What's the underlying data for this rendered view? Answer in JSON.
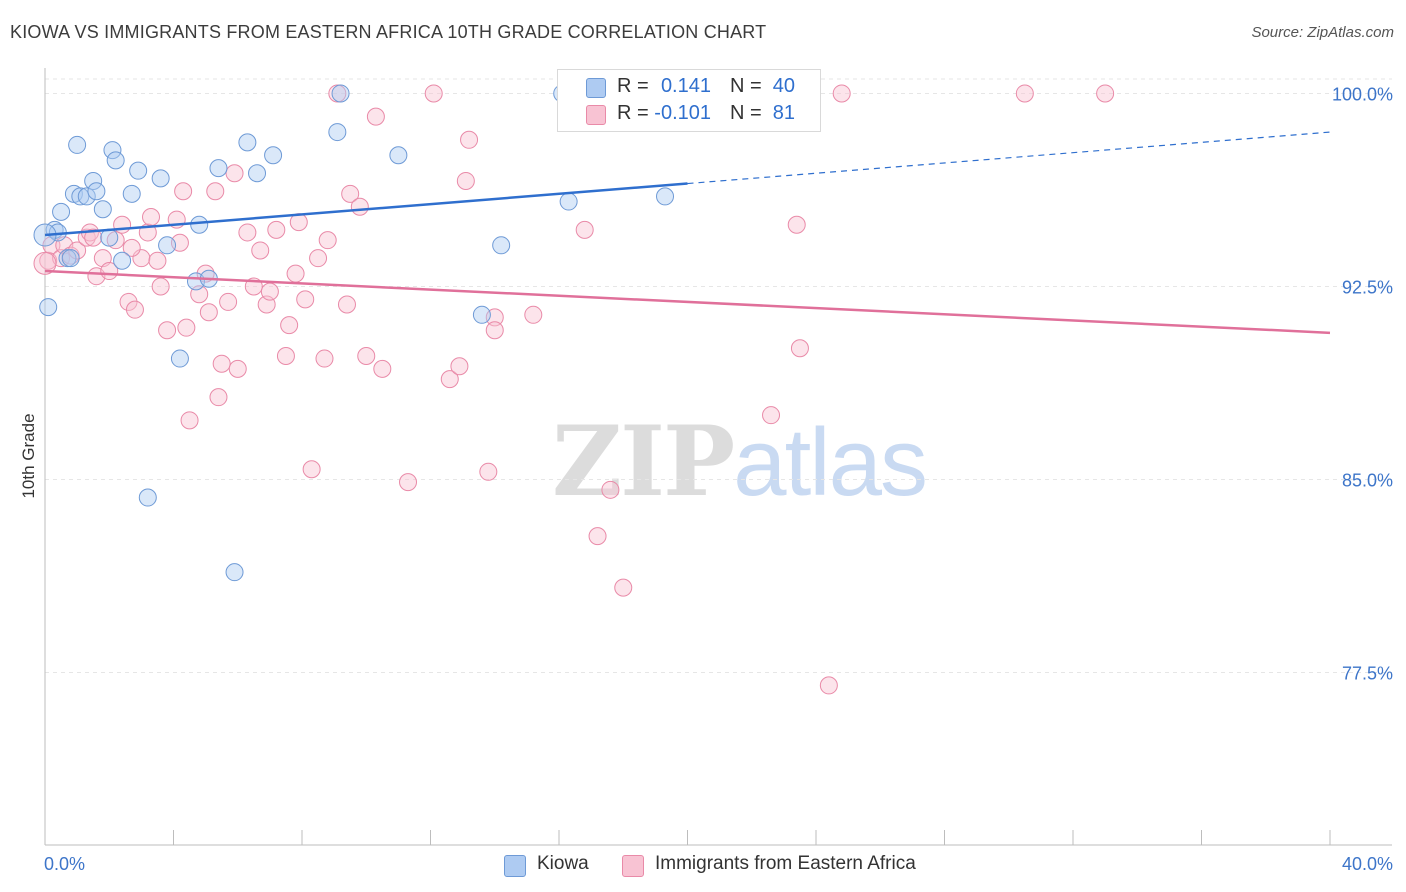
{
  "title": "KIOWA VS IMMIGRANTS FROM EASTERN AFRICA 10TH GRADE CORRELATION CHART",
  "source": "Source: ZipAtlas.com",
  "watermark": {
    "part1": "ZIP",
    "part2": "atlas"
  },
  "legend": {
    "rows": [
      {
        "r_label": "R =",
        "r_value": "0.141",
        "n_label": "N =",
        "n_value": "40",
        "fill": "#aecbf2",
        "stroke": "#6e9ad6"
      },
      {
        "r_label": "R =",
        "r_value": "-0.101",
        "n_label": "N =",
        "n_value": "81",
        "fill": "#f8c3d3",
        "stroke": "#e98aa8"
      }
    ]
  },
  "bottom_legend": {
    "series1": "Kiowa",
    "series2": "Immigrants from Eastern Africa"
  },
  "chart_data": {
    "type": "scatter",
    "title": "KIOWA VS IMMIGRANTS FROM EASTERN AFRICA 10TH GRADE CORRELATION CHART",
    "xlabel": "",
    "ylabel": "10th Grade",
    "xlim": [
      0,
      40
    ],
    "ylim": [
      70.8,
      101.3
    ],
    "x_tick_labels": [
      {
        "value": 0,
        "label": "0.0%"
      },
      {
        "value": 40,
        "label": "40.0%"
      }
    ],
    "x_minor_ticks": [
      4,
      8,
      12,
      16,
      20,
      24,
      28,
      32,
      36,
      40
    ],
    "y_ticks": [
      {
        "value": 100.0,
        "label": "100.0%"
      },
      {
        "value": 92.5,
        "label": "92.5%"
      },
      {
        "value": 85.0,
        "label": "85.0%"
      },
      {
        "value": 77.5,
        "label": "77.5%"
      }
    ],
    "grid": true,
    "series": [
      {
        "name": "Kiowa",
        "color": "#aecbf2",
        "stroke": "#6e9ad6",
        "line_color": "#2f6fce",
        "trend": {
          "x0": 0,
          "y0": 94.5,
          "x1": 20,
          "y1": 96.5,
          "dashed_to_x": 40,
          "dashed_to_y": 98.5
        },
        "points": [
          [
            0.1,
            91.7
          ],
          [
            0.3,
            94.7
          ],
          [
            0.4,
            94.6
          ],
          [
            0.5,
            95.4
          ],
          [
            0.7,
            93.6
          ],
          [
            0.8,
            93.6
          ],
          [
            0.9,
            96.1
          ],
          [
            1.0,
            98.0
          ],
          [
            1.1,
            96.0
          ],
          [
            1.3,
            96.0
          ],
          [
            1.5,
            96.6
          ],
          [
            1.6,
            96.2
          ],
          [
            1.8,
            95.5
          ],
          [
            2.0,
            94.4
          ],
          [
            2.1,
            97.8
          ],
          [
            2.2,
            97.4
          ],
          [
            2.4,
            93.5
          ],
          [
            2.7,
            96.1
          ],
          [
            2.9,
            97.0
          ],
          [
            3.2,
            84.3
          ],
          [
            3.6,
            96.7
          ],
          [
            3.8,
            94.1
          ],
          [
            4.2,
            89.7
          ],
          [
            4.7,
            92.7
          ],
          [
            4.8,
            94.9
          ],
          [
            5.1,
            92.8
          ],
          [
            5.4,
            97.1
          ],
          [
            5.9,
            81.4
          ],
          [
            6.3,
            98.1
          ],
          [
            6.6,
            96.9
          ],
          [
            7.1,
            97.6
          ],
          [
            9.1,
            98.5
          ],
          [
            9.2,
            100.0
          ],
          [
            11.0,
            97.6
          ],
          [
            13.6,
            91.4
          ],
          [
            14.2,
            94.1
          ],
          [
            16.1,
            100.0
          ],
          [
            16.3,
            95.8
          ],
          [
            19.3,
            96.0
          ],
          [
            0.0,
            94.5
          ]
        ]
      },
      {
        "name": "Immigrants from Eastern Africa",
        "color": "#f8c3d3",
        "stroke": "#e98aa8",
        "line_color": "#e0709a",
        "trend": {
          "x0": 0,
          "y0": 93.1,
          "x1": 40,
          "y1": 90.7
        },
        "points": [
          [
            0.1,
            93.5
          ],
          [
            0.2,
            94.1
          ],
          [
            0.5,
            93.6
          ],
          [
            0.6,
            94.1
          ],
          [
            0.8,
            93.7
          ],
          [
            1.0,
            93.9
          ],
          [
            1.3,
            94.4
          ],
          [
            1.4,
            94.6
          ],
          [
            1.5,
            94.4
          ],
          [
            1.6,
            92.9
          ],
          [
            1.8,
            93.6
          ],
          [
            2.0,
            93.1
          ],
          [
            2.2,
            94.3
          ],
          [
            2.4,
            94.9
          ],
          [
            2.6,
            91.9
          ],
          [
            2.8,
            91.6
          ],
          [
            3.0,
            93.6
          ],
          [
            3.2,
            94.6
          ],
          [
            3.3,
            95.2
          ],
          [
            3.5,
            93.5
          ],
          [
            3.6,
            92.5
          ],
          [
            3.8,
            90.8
          ],
          [
            4.1,
            95.1
          ],
          [
            4.2,
            94.2
          ],
          [
            4.3,
            96.2
          ],
          [
            4.4,
            90.9
          ],
          [
            4.5,
            87.3
          ],
          [
            4.8,
            92.2
          ],
          [
            5.0,
            93.0
          ],
          [
            5.1,
            91.5
          ],
          [
            5.3,
            96.2
          ],
          [
            5.4,
            88.2
          ],
          [
            5.5,
            89.5
          ],
          [
            5.7,
            91.9
          ],
          [
            5.9,
            96.9
          ],
          [
            6.0,
            89.3
          ],
          [
            6.3,
            94.6
          ],
          [
            6.5,
            92.5
          ],
          [
            6.7,
            93.9
          ],
          [
            6.9,
            91.8
          ],
          [
            7.0,
            92.3
          ],
          [
            7.2,
            94.7
          ],
          [
            7.5,
            89.8
          ],
          [
            7.6,
            91.0
          ],
          [
            7.8,
            93.0
          ],
          [
            7.9,
            95.0
          ],
          [
            8.1,
            92.0
          ],
          [
            8.3,
            85.4
          ],
          [
            8.5,
            93.6
          ],
          [
            8.7,
            89.7
          ],
          [
            8.8,
            94.3
          ],
          [
            9.1,
            100.0
          ],
          [
            9.4,
            91.8
          ],
          [
            9.5,
            96.1
          ],
          [
            9.8,
            95.6
          ],
          [
            10.0,
            89.8
          ],
          [
            10.3,
            99.1
          ],
          [
            10.5,
            89.3
          ],
          [
            11.3,
            84.9
          ],
          [
            12.1,
            100.0
          ],
          [
            12.6,
            88.9
          ],
          [
            12.9,
            89.4
          ],
          [
            13.1,
            96.6
          ],
          [
            13.2,
            98.2
          ],
          [
            13.8,
            85.3
          ],
          [
            14.0,
            91.3
          ],
          [
            14.0,
            90.8
          ],
          [
            15.2,
            91.4
          ],
          [
            16.8,
            94.7
          ],
          [
            17.2,
            82.8
          ],
          [
            17.6,
            84.6
          ],
          [
            18.0,
            80.8
          ],
          [
            22.6,
            87.5
          ],
          [
            23.4,
            94.9
          ],
          [
            23.5,
            90.1
          ],
          [
            24.4,
            77.0
          ],
          [
            24.8,
            100.0
          ],
          [
            30.5,
            100.0
          ],
          [
            33.0,
            100.0
          ],
          [
            0.0,
            93.4
          ],
          [
            2.7,
            94.0
          ]
        ]
      }
    ]
  }
}
